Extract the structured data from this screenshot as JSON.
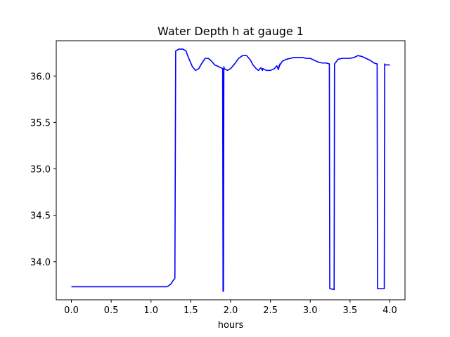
{
  "chart_data": {
    "type": "line",
    "title": "Water Depth h at gauge 1",
    "xlabel": "hours",
    "ylabel": "",
    "xlim": [
      -0.19,
      4.19
    ],
    "ylim": [
      33.59,
      36.38
    ],
    "xticks": [
      0.0,
      0.5,
      1.0,
      1.5,
      2.0,
      2.5,
      3.0,
      3.5,
      4.0
    ],
    "xtick_labels": [
      "0.0",
      "0.5",
      "1.0",
      "1.5",
      "2.0",
      "2.5",
      "3.0",
      "3.5",
      "4.0"
    ],
    "yticks": [
      34.0,
      34.5,
      35.0,
      35.5,
      36.0
    ],
    "ytick_labels": [
      "34.0",
      "34.5",
      "35.0",
      "35.5",
      "36.0"
    ],
    "grid": false,
    "series": [
      {
        "color": "#0000ff",
        "x": [
          0.0,
          0.5,
          1.0,
          1.2,
          1.22,
          1.25,
          1.28,
          1.3,
          1.31,
          1.35,
          1.4,
          1.44,
          1.46,
          1.48,
          1.52,
          1.56,
          1.6,
          1.64,
          1.68,
          1.72,
          1.76,
          1.8,
          1.85,
          1.9,
          1.905,
          1.91,
          1.915,
          1.92,
          1.96,
          2.0,
          2.05,
          2.1,
          2.15,
          2.2,
          2.25,
          2.28,
          2.32,
          2.35,
          2.38,
          2.4,
          2.405,
          2.45,
          2.5,
          2.55,
          2.58,
          2.6,
          2.62,
          2.605,
          2.65,
          2.7,
          2.75,
          2.8,
          2.85,
          2.9,
          2.95,
          3.0,
          3.05,
          3.1,
          3.15,
          3.2,
          3.24,
          3.245,
          3.25,
          3.3,
          3.305,
          3.35,
          3.4,
          3.45,
          3.5,
          3.55,
          3.6,
          3.65,
          3.7,
          3.75,
          3.8,
          3.84,
          3.845,
          3.85,
          3.93,
          3.935,
          3.94,
          4.0
        ],
        "y": [
          33.73,
          33.73,
          33.73,
          33.73,
          33.74,
          33.76,
          33.8,
          33.82,
          36.27,
          36.29,
          36.29,
          36.27,
          36.22,
          36.18,
          36.1,
          36.06,
          36.08,
          36.14,
          36.19,
          36.19,
          36.16,
          36.12,
          36.1,
          36.08,
          33.68,
          33.69,
          36.1,
          36.08,
          36.06,
          36.08,
          36.13,
          36.19,
          36.22,
          36.22,
          36.17,
          36.12,
          36.08,
          36.06,
          36.09,
          36.06,
          36.08,
          36.06,
          36.06,
          36.08,
          36.11,
          36.07,
          36.13,
          36.1,
          36.16,
          36.18,
          36.19,
          36.2,
          36.2,
          36.2,
          36.19,
          36.19,
          36.17,
          36.15,
          36.14,
          36.14,
          36.13,
          33.71,
          33.71,
          33.7,
          36.13,
          36.18,
          36.19,
          36.19,
          36.19,
          36.2,
          36.22,
          36.21,
          36.19,
          36.17,
          36.14,
          36.13,
          33.71,
          33.71,
          33.71,
          36.13,
          36.12,
          36.12
        ]
      }
    ]
  }
}
